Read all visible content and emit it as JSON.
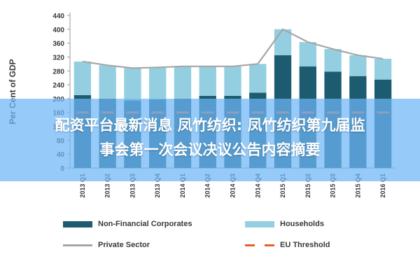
{
  "chart_data": {
    "type": "bar",
    "stacked": true,
    "ylabel": "Per Cent of GDP",
    "ylim": [
      0,
      440
    ],
    "yticks": [
      0,
      40,
      80,
      120,
      160,
      200,
      240,
      280,
      320,
      360,
      400,
      440
    ],
    "categories": [
      "2013 Q1",
      "2013 Q2",
      "2013 Q3",
      "2013 Q4",
      "2014 Q1",
      "2014 Q2",
      "2014 Q3",
      "2014 Q4",
      "2015 Q1",
      "2015 Q2",
      "2015 Q3",
      "2015 Q4",
      "2016 Q1"
    ],
    "series": [
      {
        "name": "Non-Financial Corporates",
        "values": [
          210,
          200,
          195,
          198,
          200,
          208,
          208,
          217,
          325,
          293,
          278,
          265,
          255
        ]
      },
      {
        "name": "Households",
        "values": [
          97,
          96,
          93,
          92,
          93,
          85,
          85,
          83,
          75,
          70,
          65,
          60,
          60
        ]
      },
      {
        "name": "Private Sector",
        "kind": "line",
        "values": [
          307,
          296,
          288,
          290,
          293,
          293,
          293,
          300,
          400,
          363,
          343,
          325,
          315
        ]
      },
      {
        "name": "EU Threshold",
        "kind": "dashed",
        "values": [
          160,
          160,
          160,
          160,
          160,
          160,
          160,
          160,
          160,
          160,
          160,
          160,
          160
        ]
      }
    ],
    "grid": false,
    "legend_position": "bottom"
  },
  "colors": {
    "corporates": "#1c5b70",
    "households": "#93cfe0",
    "private_sector": "#a6a6a6",
    "eu_threshold": "#e6602a",
    "banner": "#6eb6f5"
  },
  "legend": {
    "corporates": "Non-Financial Corporates",
    "households": "Households",
    "private_sector": "Private Sector",
    "eu_threshold": "EU Threshold"
  },
  "banner": {
    "line1": "配资平台最新消息 凤竹纺织: 凤竹纺织第九届监",
    "line2": "事会第一次会议决议公告内容摘要"
  }
}
